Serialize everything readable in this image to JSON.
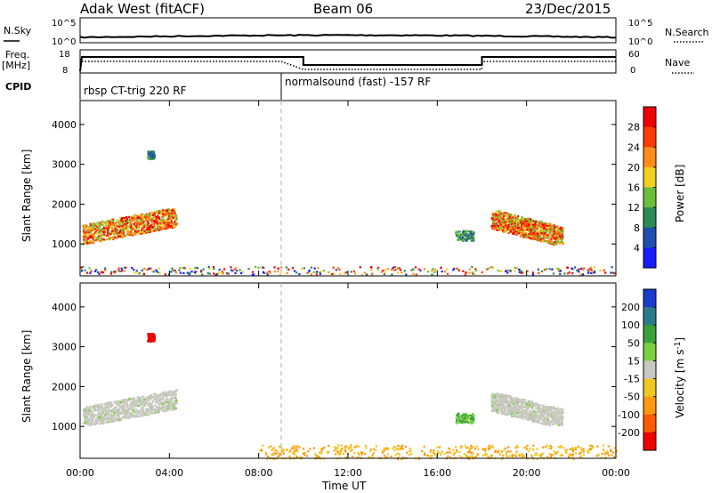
{
  "header": {
    "station": "Adak West (fitACF)",
    "beam": "Beam 06",
    "date": "23/Dec/2015"
  },
  "aux_panels": {
    "nsky_label": "N.Sky",
    "nsearch_label": "N.Search",
    "freq_label_line1": "Freq.",
    "freq_label_line2": "[MHz]",
    "nave_label": "Nave",
    "cpid_label": "CPID",
    "nsky_ticks": [
      "10^5",
      "10^0"
    ],
    "nsearch_ticks": [
      "10^5",
      "10^0"
    ],
    "freq_ticks": [
      "18",
      "8"
    ],
    "nave_ticks": [
      "60",
      "0"
    ],
    "cpid_mode_1": "rbsp CT-trig 220 RF",
    "cpid_mode_2": "normalsound (fast) -157 RF"
  },
  "chart_data": [
    {
      "type": "heatmap",
      "title": "",
      "xlabel": "Time UT",
      "ylabel": "Slant Range [km]",
      "xlim": [
        0,
        24
      ],
      "ylim": [
        200,
        4600
      ],
      "x_ticks": [
        "00:00",
        "04:00",
        "08:00",
        "12:00",
        "16:00",
        "20:00",
        "00:00"
      ],
      "y_ticks": [
        "1000",
        "2000",
        "3000",
        "4000"
      ],
      "colorbar": {
        "label": "Power [dB]",
        "ticks": [
          "4",
          "8",
          "12",
          "16",
          "20",
          "24",
          "28"
        ],
        "colors": [
          "#1a1aff",
          "#1f4fb0",
          "#2e8b57",
          "#6abf3a",
          "#f0d020",
          "#ff8c1a",
          "#ff3a00",
          "#ee0000"
        ]
      },
      "regions": [
        {
          "t0": 0.1,
          "t1": 4.3,
          "r0": 950,
          "r1": 1900,
          "level": "high"
        },
        {
          "t0": 18.4,
          "t1": 21.6,
          "r0": 1000,
          "r1": 1850,
          "level": "high"
        },
        {
          "t0": 16.8,
          "t1": 17.6,
          "r0": 1100,
          "r1": 1350,
          "level": "mid"
        },
        {
          "t0": 3.0,
          "t1": 3.3,
          "r0": 3150,
          "r1": 3350,
          "level": "mid"
        },
        {
          "t0": 0.0,
          "t1": 24.0,
          "r0": 250,
          "r1": 450,
          "level": "low"
        }
      ]
    },
    {
      "type": "heatmap",
      "title": "",
      "xlabel": "Time UT",
      "ylabel": "Slant Range [km]",
      "xlim": [
        0,
        24
      ],
      "ylim": [
        200,
        4600
      ],
      "x_ticks": [
        "00:00",
        "04:00",
        "08:00",
        "12:00",
        "16:00",
        "20:00",
        "00:00"
      ],
      "y_ticks": [
        "1000",
        "2000",
        "3000",
        "4000"
      ],
      "colorbar": {
        "label": "Velocity [m s^-1]",
        "ticks": [
          "200",
          "100",
          "50",
          "15",
          "-15",
          "-50",
          "-100",
          "-200"
        ],
        "colors": [
          "#1a3ad0",
          "#2a7a8a",
          "#3aa03a",
          "#7ad040",
          "#c8c8c0",
          "#f0c820",
          "#ff9a10",
          "#ff5a00",
          "#ee0000"
        ]
      },
      "regions": [
        {
          "t0": 0.1,
          "t1": 4.3,
          "r0": 1050,
          "r1": 1950,
          "value": 0
        },
        {
          "t0": 18.4,
          "t1": 21.6,
          "r0": 1050,
          "r1": 1850,
          "value": 0
        },
        {
          "t0": 16.8,
          "t1": 17.6,
          "r0": 1100,
          "r1": 1350,
          "value": 60
        },
        {
          "t0": 3.0,
          "t1": 3.3,
          "r0": 3150,
          "r1": 3350,
          "value": -250
        },
        {
          "t0": 8.0,
          "t1": 24.0,
          "r0": 200,
          "r1": 550,
          "value": -40
        }
      ]
    }
  ]
}
